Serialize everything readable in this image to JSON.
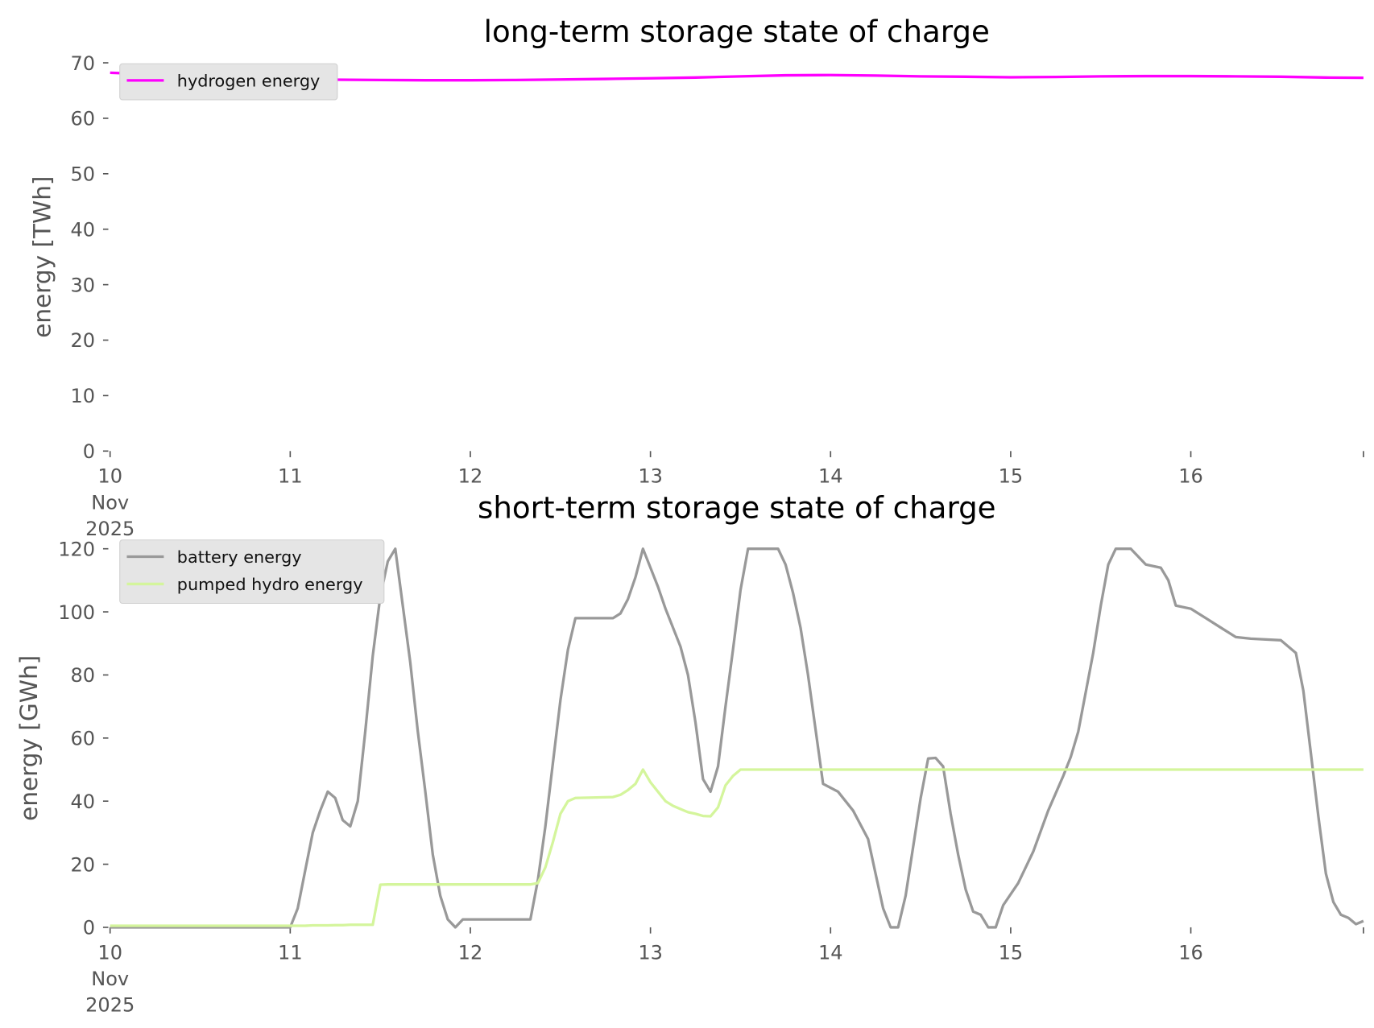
{
  "chart_data": [
    {
      "type": "line",
      "title": "long-term storage state of charge",
      "ylabel": "energy [TWh]",
      "legend": "upper left",
      "x": [
        "2025-11-10T00:00",
        "2025-11-10T06:00",
        "2025-11-10T12:00",
        "2025-11-10T18:00",
        "2025-11-11T00:00",
        "2025-11-11T06:00",
        "2025-11-11T12:00",
        "2025-11-11T18:00",
        "2025-11-12T00:00",
        "2025-11-12T06:00",
        "2025-11-12T12:00",
        "2025-11-12T18:00",
        "2025-11-13T00:00",
        "2025-11-13T06:00",
        "2025-11-13T12:00",
        "2025-11-13T18:00",
        "2025-11-14T00:00",
        "2025-11-14T06:00",
        "2025-11-14T12:00",
        "2025-11-14T18:00",
        "2025-11-15T00:00",
        "2025-11-15T06:00",
        "2025-11-15T12:00",
        "2025-11-15T18:00",
        "2025-11-16T00:00",
        "2025-11-16T06:00",
        "2025-11-16T12:00",
        "2025-11-16T18:00",
        "2025-11-16T23:00"
      ],
      "series": [
        {
          "name": "hydrogen energy",
          "color": "#ff00ff",
          "values": [
            68.2,
            67.9,
            67.5,
            67.2,
            67.0,
            66.95,
            66.9,
            66.85,
            66.85,
            66.9,
            67.0,
            67.1,
            67.2,
            67.35,
            67.55,
            67.75,
            67.8,
            67.7,
            67.55,
            67.5,
            67.4,
            67.45,
            67.55,
            67.6,
            67.6,
            67.55,
            67.5,
            67.35,
            67.3
          ]
        }
      ],
      "xlim": [
        "2025-11-10T00:00",
        "2025-11-16T23:00"
      ],
      "xticks": [
        {
          "value": "2025-11-10T00:00",
          "label": "10\nNov\n2025"
        },
        {
          "value": "2025-11-11T00:00",
          "label": "11"
        },
        {
          "value": "2025-11-12T00:00",
          "label": "12"
        },
        {
          "value": "2025-11-13T00:00",
          "label": "13"
        },
        {
          "value": "2025-11-14T00:00",
          "label": "14"
        },
        {
          "value": "2025-11-15T00:00",
          "label": "15"
        },
        {
          "value": "2025-11-16T00:00",
          "label": "16"
        }
      ],
      "ylim": [
        0,
        70
      ],
      "yticks": [
        0,
        10,
        20,
        30,
        40,
        50,
        60,
        70
      ]
    },
    {
      "type": "line",
      "title": "short-term storage state of charge",
      "ylabel": "energy [GWh]",
      "legend": "upper left",
      "x": [
        "2025-11-10T00:00",
        "2025-11-11T00:00",
        "2025-11-11T01:00",
        "2025-11-11T02:00",
        "2025-11-11T03:00",
        "2025-11-11T04:00",
        "2025-11-11T05:00",
        "2025-11-11T06:00",
        "2025-11-11T07:00",
        "2025-11-11T08:00",
        "2025-11-11T09:00",
        "2025-11-11T10:00",
        "2025-11-11T11:00",
        "2025-11-11T12:00",
        "2025-11-11T13:00",
        "2025-11-11T14:00",
        "2025-11-11T15:00",
        "2025-11-11T16:00",
        "2025-11-11T17:00",
        "2025-11-11T18:00",
        "2025-11-11T19:00",
        "2025-11-11T20:00",
        "2025-11-11T21:00",
        "2025-11-11T22:00",
        "2025-11-11T23:00",
        "2025-11-12T08:00",
        "2025-11-12T09:00",
        "2025-11-12T10:00",
        "2025-11-12T11:00",
        "2025-11-12T12:00",
        "2025-11-12T13:00",
        "2025-11-12T14:00",
        "2025-11-12T19:00",
        "2025-11-12T20:00",
        "2025-11-12T21:00",
        "2025-11-12T22:00",
        "2025-11-12T23:00",
        "2025-11-13T00:00",
        "2025-11-13T01:00",
        "2025-11-13T02:00",
        "2025-11-13T03:00",
        "2025-11-13T04:00",
        "2025-11-13T05:00",
        "2025-11-13T06:00",
        "2025-11-13T07:00",
        "2025-11-13T08:00",
        "2025-11-13T09:00",
        "2025-11-13T10:00",
        "2025-11-13T11:00",
        "2025-11-13T12:00",
        "2025-11-13T13:00",
        "2025-11-13T17:00",
        "2025-11-13T18:00",
        "2025-11-13T19:00",
        "2025-11-13T20:00",
        "2025-11-13T21:00",
        "2025-11-13T23:00",
        "2025-11-14T01:00",
        "2025-11-14T03:00",
        "2025-11-14T05:00",
        "2025-11-14T06:00",
        "2025-11-14T07:00",
        "2025-11-14T08:00",
        "2025-11-14T09:00",
        "2025-11-14T10:00",
        "2025-11-14T12:00",
        "2025-11-14T13:00",
        "2025-11-14T14:00",
        "2025-11-14T15:00",
        "2025-11-14T16:00",
        "2025-11-14T17:00",
        "2025-11-14T18:00",
        "2025-11-14T19:00",
        "2025-11-14T20:00",
        "2025-11-14T21:00",
        "2025-11-14T22:00",
        "2025-11-14T23:00",
        "2025-11-15T01:00",
        "2025-11-15T03:00",
        "2025-11-15T05:00",
        "2025-11-15T07:00",
        "2025-11-15T08:00",
        "2025-11-15T09:00",
        "2025-11-15T11:00",
        "2025-11-15T12:00",
        "2025-11-15T13:00",
        "2025-11-15T14:00",
        "2025-11-15T16:00",
        "2025-11-15T18:00",
        "2025-11-15T20:00",
        "2025-11-15T21:00",
        "2025-11-15T22:00",
        "2025-11-16T00:00",
        "2025-11-16T02:00",
        "2025-11-16T04:00",
        "2025-11-16T06:00",
        "2025-11-16T08:00",
        "2025-11-16T12:00",
        "2025-11-16T13:00",
        "2025-11-16T14:00",
        "2025-11-16T15:00",
        "2025-11-16T16:00",
        "2025-11-16T17:00",
        "2025-11-16T18:00",
        "2025-11-16T19:00",
        "2025-11-16T20:00",
        "2025-11-16T21:00",
        "2025-11-16T22:00",
        "2025-11-16T23:00"
      ],
      "series": [
        {
          "name": "battery energy",
          "color": "#999999",
          "values": [
            0,
            0,
            6,
            18,
            30,
            37,
            43,
            41,
            34,
            32,
            40,
            62,
            86,
            105,
            116,
            120,
            102,
            84,
            62,
            43,
            23,
            10,
            2.5,
            0,
            2.5,
            2.5,
            15,
            32,
            52,
            72,
            88,
            98,
            98,
            99.5,
            104,
            111,
            120,
            114,
            108,
            101,
            95,
            89,
            80,
            65,
            47,
            43,
            51,
            70,
            88,
            107,
            120,
            120,
            115,
            106,
            95,
            80,
            45.5,
            43,
            37,
            28,
            17,
            6,
            0,
            0,
            10,
            41,
            53.5,
            53.7,
            51,
            36,
            23,
            12,
            5,
            4,
            0,
            0,
            7,
            14,
            24,
            37,
            48,
            54,
            62,
            87,
            102,
            115,
            120,
            120,
            115,
            114,
            110,
            102,
            101,
            98,
            95,
            92,
            91.5,
            91,
            89,
            87,
            75,
            55,
            35,
            17,
            8,
            4,
            3,
            1,
            2
          ]
        },
        {
          "name": "pumped hydro energy",
          "color": "#d4f59c",
          "values": [
            0.5,
            0.5,
            0.5,
            0.5,
            0.6,
            0.6,
            0.6,
            0.7,
            0.7,
            0.8,
            0.8,
            0.8,
            0.8,
            13.5,
            13.6,
            13.6,
            13.6,
            13.6,
            13.6,
            13.6,
            13.6,
            13.6,
            13.6,
            13.6,
            13.6,
            13.6,
            14,
            19,
            27,
            36,
            40,
            41,
            41.3,
            42,
            43.5,
            45.5,
            50,
            46,
            43,
            40,
            38.5,
            37.5,
            36.5,
            36,
            35.3,
            35.2,
            38,
            45,
            48,
            50,
            50,
            50,
            50,
            50,
            50,
            50,
            50,
            50,
            50,
            50,
            50,
            50,
            50,
            50,
            50,
            50,
            50,
            50,
            50,
            50,
            50,
            50,
            50,
            50,
            50,
            50,
            50,
            50,
            50,
            50,
            50,
            50,
            50,
            50,
            50,
            50,
            50,
            50,
            50,
            50,
            50,
            50,
            50,
            50,
            50,
            50,
            50,
            50,
            50,
            50,
            50,
            50,
            50,
            50,
            50,
            50,
            50,
            50,
            50
          ]
        }
      ],
      "xlim": [
        "2025-11-10T00:00",
        "2025-11-16T23:00"
      ],
      "xticks": [
        {
          "value": "2025-11-10T00:00",
          "label": "10\nNov\n2025"
        },
        {
          "value": "2025-11-11T00:00",
          "label": "11"
        },
        {
          "value": "2025-11-12T00:00",
          "label": "12"
        },
        {
          "value": "2025-11-13T00:00",
          "label": "13"
        },
        {
          "value": "2025-11-14T00:00",
          "label": "14"
        },
        {
          "value": "2025-11-15T00:00",
          "label": "15"
        },
        {
          "value": "2025-11-16T00:00",
          "label": "16"
        }
      ],
      "ylim": [
        0,
        120
      ],
      "yticks": [
        0,
        20,
        40,
        60,
        80,
        100,
        120
      ]
    }
  ]
}
